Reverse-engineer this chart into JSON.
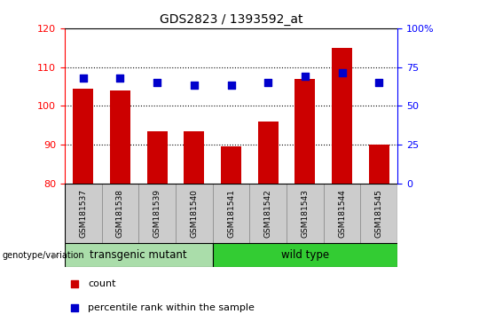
{
  "title": "GDS2823 / 1393592_at",
  "samples": [
    "GSM181537",
    "GSM181538",
    "GSM181539",
    "GSM181540",
    "GSM181541",
    "GSM181542",
    "GSM181543",
    "GSM181544",
    "GSM181545"
  ],
  "counts": [
    104.5,
    104.0,
    93.5,
    93.5,
    89.5,
    96.0,
    107.0,
    115.0,
    90.0
  ],
  "percentile_ranks_pct": [
    68.0,
    68.0,
    65.0,
    63.5,
    63.5,
    65.0,
    69.0,
    71.5,
    65.0
  ],
  "ylim_left": [
    80,
    120
  ],
  "ylim_right": [
    0,
    100
  ],
  "yticks_left": [
    80,
    90,
    100,
    110,
    120
  ],
  "yticks_right": [
    0,
    25,
    50,
    75,
    100
  ],
  "ytick_labels_right": [
    "0",
    "25",
    "50",
    "75",
    "100%"
  ],
  "bar_color": "#cc0000",
  "dot_color": "#0000cc",
  "bar_bottom": 80,
  "groups": [
    {
      "label": "transgenic mutant",
      "start": 0,
      "end": 4,
      "color": "#aaddaa"
    },
    {
      "label": "wild type",
      "start": 4,
      "end": 9,
      "color": "#33cc33"
    }
  ],
  "group_label_prefix": "genotype/variation",
  "legend_count_label": "count",
  "legend_percentile_label": "percentile rank within the sample",
  "dot_size": 35,
  "bar_width": 0.55
}
